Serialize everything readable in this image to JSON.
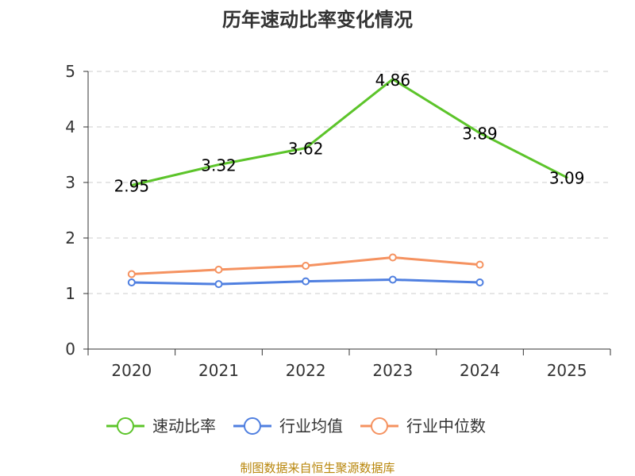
{
  "chart_data": {
    "type": "line",
    "title": "历年速动比率变化情况",
    "categories": [
      "2020",
      "2021",
      "2022",
      "2023",
      "2024",
      "2025"
    ],
    "ylim": [
      0,
      5
    ],
    "yticks": [
      0,
      1,
      2,
      3,
      4,
      5
    ],
    "ytick_labels": [
      "0",
      "1",
      "2",
      "3",
      "4",
      "5"
    ],
    "grid": true,
    "legend_position": "bottom",
    "series": [
      {
        "name": "速动比率",
        "color": "#5cc42a",
        "values": [
          2.95,
          3.32,
          3.62,
          4.86,
          3.89,
          3.09
        ],
        "labels": [
          "2.95",
          "3.32",
          "3.62",
          "4.86",
          "3.89",
          "3.09"
        ],
        "show_labels": true,
        "show_markers": false
      },
      {
        "name": "行业均值",
        "color": "#4f7fe0",
        "values": [
          1.2,
          1.17,
          1.22,
          1.25,
          1.2,
          null
        ],
        "show_labels": false,
        "show_markers": true
      },
      {
        "name": "行业中位数",
        "color": "#f59260",
        "values": [
          1.35,
          1.43,
          1.5,
          1.65,
          1.52,
          null
        ],
        "show_labels": false,
        "show_markers": true
      }
    ]
  },
  "footer": {
    "source": "制图数据来自恒生聚源数据库"
  }
}
